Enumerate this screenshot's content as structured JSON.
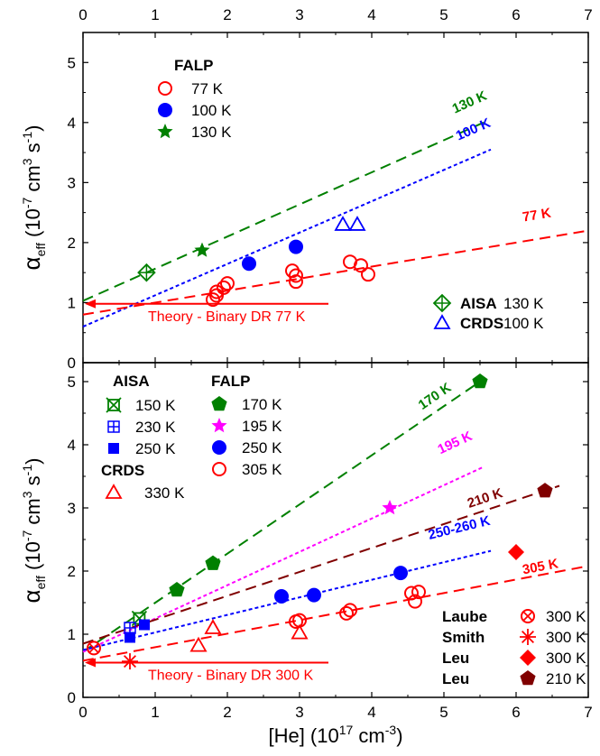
{
  "x_axis": {
    "label_main": "[He] (10",
    "label_sup": "17",
    "label_tail": " cm",
    "label_sup2": "-3",
    "label_close": ")",
    "ticks": [
      "0",
      "1",
      "2",
      "3",
      "4",
      "5",
      "6",
      "7"
    ]
  },
  "y_axis": {
    "alpha": "α",
    "alpha_sub": "eff",
    "unit_open": " (10",
    "unit_sup1": "-7",
    "unit_mid": " cm",
    "unit_sup2": "3",
    "unit_s": " s",
    "unit_sup3": "-1",
    "unit_close": ")",
    "ticks": [
      "0",
      "1",
      "2",
      "3",
      "4",
      "5"
    ]
  },
  "chart_data": [
    {
      "type": "scatter",
      "panel": "top",
      "xlim": [
        0,
        7
      ],
      "ylim": [
        0,
        5.5
      ],
      "legend_top_title": "FALP",
      "legend_top": [
        {
          "label": "77 K",
          "color": "#ff0000",
          "marker": "open-circle"
        },
        {
          "label": "100 K",
          "color": "#0000ff",
          "marker": "filled-circle"
        },
        {
          "label": "130 K",
          "color": "#008000",
          "marker": "star"
        }
      ],
      "legend_bottom": [
        {
          "name": "AISA",
          "temp": "130 K",
          "color": "#008000",
          "marker": "crossed-diamond"
        },
        {
          "name": "CRDS",
          "temp": "100 K",
          "color": "#0000ff",
          "marker": "open-triangle"
        }
      ],
      "series": [
        {
          "name": "FALP 77 K",
          "color": "#ff0000",
          "marker": "open-circle",
          "x": [
            1.8,
            1.85,
            1.95,
            2.0,
            1.85,
            2.9,
            2.95,
            2.95,
            3.7,
            3.85,
            3.95
          ],
          "y": [
            1.05,
            1.18,
            1.25,
            1.32,
            1.12,
            1.53,
            1.45,
            1.35,
            1.68,
            1.62,
            1.47
          ]
        },
        {
          "name": "FALP 100 K",
          "color": "#0000ff",
          "marker": "filled-circle",
          "x": [
            2.3,
            2.95
          ],
          "y": [
            1.65,
            1.93
          ]
        },
        {
          "name": "FALP 130 K",
          "color": "#008000",
          "marker": "star",
          "x": [
            1.65
          ],
          "y": [
            1.87
          ]
        },
        {
          "name": "AISA 130 K",
          "color": "#008000",
          "marker": "crossed-diamond",
          "x": [
            0.88
          ],
          "y": [
            1.5
          ]
        },
        {
          "name": "CRDS 100 K",
          "color": "#0000ff",
          "marker": "open-triangle",
          "x": [
            3.6,
            3.8
          ],
          "y": [
            2.3,
            2.3
          ]
        }
      ],
      "fits": [
        {
          "label": "130 K",
          "color": "#008000",
          "dash": "long",
          "x": [
            0,
            5.55
          ],
          "y": [
            1.03,
            4.0
          ],
          "label_x": 5.15,
          "label_y": 4.15
        },
        {
          "label": "100 K",
          "color": "#0000ff",
          "dash": "short",
          "x": [
            0,
            5.65
          ],
          "y": [
            0.6,
            3.55
          ],
          "label_x": 5.2,
          "label_y": 3.7
        },
        {
          "label": "77 K",
          "color": "#ff0000",
          "dash": "long",
          "x": [
            0,
            7
          ],
          "y": [
            0.8,
            2.2
          ],
          "label_x": 6.1,
          "label_y": 2.35
        }
      ],
      "annotation": {
        "text": "Theory - Binary DR  77 K",
        "color": "#ff0000",
        "x": [
          0,
          3.4
        ],
        "y": 0.98
      }
    },
    {
      "type": "scatter",
      "panel": "bottom",
      "xlim": [
        0,
        7
      ],
      "ylim": [
        0,
        5.3
      ],
      "legend_aisa_title": "AISA",
      "legend_aisa": [
        {
          "label": "150 K",
          "color": "#008000",
          "marker": "crossed-square"
        },
        {
          "label": "230 K",
          "color": "#0000ff",
          "marker": "plus-square"
        },
        {
          "label": "250 K",
          "color": "#0000ff",
          "marker": "filled-square"
        }
      ],
      "legend_crds_title": "CRDS",
      "legend_crds": [
        {
          "label": "330 K",
          "color": "#ff0000",
          "marker": "open-triangle"
        }
      ],
      "legend_falp_title": "FALP",
      "legend_falp": [
        {
          "label": "170 K",
          "color": "#008000",
          "marker": "pentagon"
        },
        {
          "label": "195 K",
          "color": "#ff00ff",
          "marker": "star"
        },
        {
          "label": "250 K",
          "color": "#0000ff",
          "marker": "filled-circle"
        },
        {
          "label": "305 K",
          "color": "#ff0000",
          "marker": "open-circle"
        }
      ],
      "legend_right": [
        {
          "name": "Laube",
          "temp": "300 K",
          "color": "#ff0000",
          "marker": "crossed-circle"
        },
        {
          "name": "Smith",
          "temp": "300 K",
          "color": "#ff0000",
          "marker": "asterisk"
        },
        {
          "name": "Leu",
          "temp": "300 K",
          "color": "#ff0000",
          "marker": "filled-diamond"
        },
        {
          "name": "Leu",
          "temp": "210 K",
          "color": "#800000",
          "marker": "filled-pentagon"
        }
      ],
      "series": [
        {
          "name": "FALP 170 K",
          "color": "#008000",
          "marker": "pentagon",
          "x": [
            1.3,
            1.8,
            5.5
          ],
          "y": [
            1.7,
            2.12,
            5.0
          ]
        },
        {
          "name": "FALP 195 K",
          "color": "#ff00ff",
          "marker": "star",
          "x": [
            4.25
          ],
          "y": [
            3.0
          ]
        },
        {
          "name": "FALP 250 K",
          "color": "#0000ff",
          "marker": "filled-circle",
          "x": [
            2.75,
            3.2,
            4.4
          ],
          "y": [
            1.6,
            1.62,
            1.97
          ]
        },
        {
          "name": "FALP 305 K",
          "color": "#ff0000",
          "marker": "open-circle",
          "x": [
            2.95,
            3.0,
            3.65,
            3.7,
            4.55,
            4.6,
            4.65
          ],
          "y": [
            1.2,
            1.22,
            1.33,
            1.38,
            1.65,
            1.52,
            1.67
          ]
        },
        {
          "name": "AISA 150 K",
          "color": "#008000",
          "marker": "crossed-square",
          "x": [
            0.78
          ],
          "y": [
            1.25
          ]
        },
        {
          "name": "AISA 230 K",
          "color": "#0000ff",
          "marker": "plus-square",
          "x": [
            0.65
          ],
          "y": [
            1.1
          ]
        },
        {
          "name": "AISA 250 K",
          "color": "#0000ff",
          "marker": "filled-square",
          "x": [
            0.65,
            0.85
          ],
          "y": [
            0.95,
            1.15
          ]
        },
        {
          "name": "CRDS 330 K",
          "color": "#ff0000",
          "marker": "open-triangle",
          "x": [
            1.6,
            1.8,
            3.0
          ],
          "y": [
            0.82,
            1.1,
            1.02
          ]
        },
        {
          "name": "Laube 300 K",
          "color": "#ff0000",
          "marker": "crossed-circle",
          "x": [
            0.15
          ],
          "y": [
            0.78
          ]
        },
        {
          "name": "Smith 300 K",
          "color": "#ff0000",
          "marker": "asterisk",
          "x": [
            0.65
          ],
          "y": [
            0.57
          ]
        },
        {
          "name": "Leu 300 K",
          "color": "#ff0000",
          "marker": "filled-diamond",
          "x": [
            6.0
          ],
          "y": [
            2.3
          ]
        },
        {
          "name": "Leu 210 K",
          "color": "#800000",
          "marker": "filled-pentagon",
          "x": [
            6.4
          ],
          "y": [
            3.27
          ]
        }
      ],
      "fits": [
        {
          "label": "170 K",
          "color": "#008000",
          "dash": "long",
          "x": [
            0,
            5.5
          ],
          "y": [
            0.72,
            5.0
          ],
          "label_x": 4.7,
          "label_y": 4.55
        },
        {
          "label": "195 K",
          "color": "#ff00ff",
          "dash": "short",
          "x": [
            0,
            5.55
          ],
          "y": [
            0.72,
            3.65
          ],
          "label_x": 4.95,
          "label_y": 3.85
        },
        {
          "label": "210 K",
          "color": "#800000",
          "dash": "long",
          "x": [
            0,
            6.6
          ],
          "y": [
            0.85,
            3.35
          ],
          "label_x": 5.35,
          "label_y": 3.0
        },
        {
          "label": "250-260 K",
          "color": "#0000ff",
          "dash": "short",
          "x": [
            0,
            5.65
          ],
          "y": [
            0.75,
            2.32
          ],
          "label_x": 4.8,
          "label_y": 2.5
        },
        {
          "label": "305 K",
          "color": "#ff0000",
          "dash": "long",
          "x": [
            0,
            7
          ],
          "y": [
            0.58,
            2.08
          ],
          "label_x": 6.1,
          "label_y": 1.95
        }
      ],
      "annotation": {
        "text": "Theory - Binary DR  300 K",
        "color": "#ff0000",
        "x": [
          0,
          3.4
        ],
        "y": 0.55
      }
    }
  ]
}
